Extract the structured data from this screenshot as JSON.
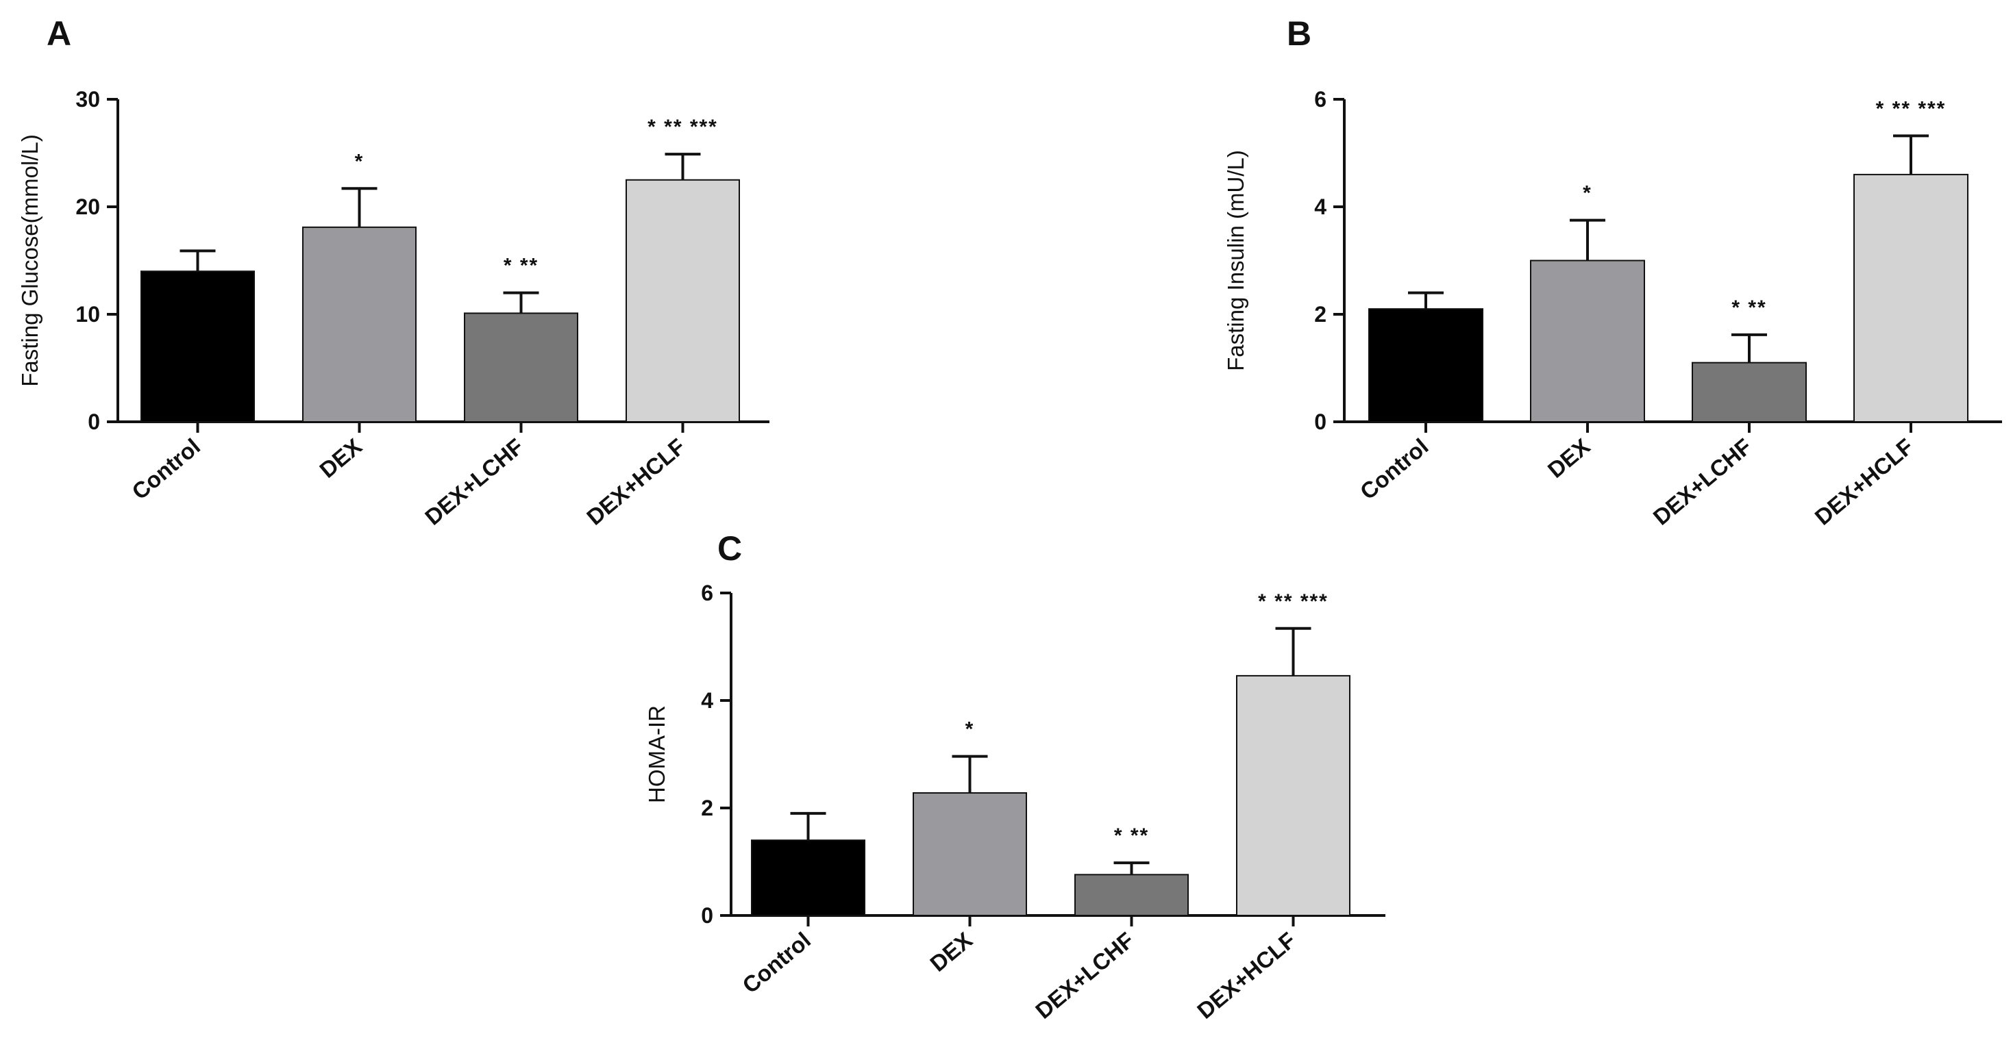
{
  "figure": {
    "colors": [
      "#000000",
      "#9a9a9e",
      "#777777",
      "#d3d3d3"
    ]
  },
  "chart_data": [
    {
      "panel": "A",
      "type": "bar",
      "ylabel": "Fasting Glucose(mmol/L)",
      "ylim": [
        0,
        30
      ],
      "yticks": [
        0,
        10,
        20,
        30
      ],
      "categories": [
        "Control",
        "DEX",
        "DEX+LCHF",
        "DEX+HCLF"
      ],
      "values": [
        14.0,
        18.1,
        10.1,
        22.5
      ],
      "errors": [
        1.9,
        3.6,
        1.9,
        2.4
      ],
      "significance": [
        "",
        "*",
        "* **",
        "* ** ***"
      ]
    },
    {
      "panel": "B",
      "type": "bar",
      "ylabel": "Fasting Insulin (mU/L)",
      "ylim": [
        0,
        6
      ],
      "yticks": [
        0,
        2,
        4,
        6
      ],
      "categories": [
        "Control",
        "DEX",
        "DEX+LCHF",
        "DEX+HCLF"
      ],
      "values": [
        2.1,
        3.0,
        1.1,
        4.6
      ],
      "errors": [
        0.3,
        0.75,
        0.52,
        0.72
      ],
      "significance": [
        "",
        "*",
        "* **",
        "* ** ***"
      ]
    },
    {
      "panel": "C",
      "type": "bar",
      "ylabel": "HOMA-IR",
      "ylim": [
        0,
        6
      ],
      "yticks": [
        0,
        2,
        4,
        6
      ],
      "categories": [
        "Control",
        "DEX",
        "DEX+LCHF",
        "DEX+HCLF"
      ],
      "values": [
        1.4,
        2.28,
        0.76,
        4.46
      ],
      "errors": [
        0.5,
        0.68,
        0.22,
        0.88
      ],
      "significance": [
        "",
        "*",
        "* **",
        "* ** ***"
      ]
    }
  ]
}
